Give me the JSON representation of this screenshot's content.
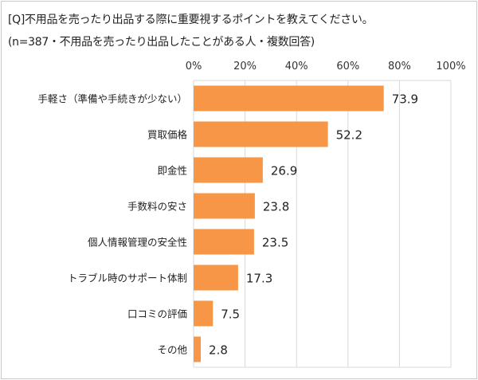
{
  "title": "[Q]不用品を売ったり出品する際に重要視するポイントを教えてください。",
  "subtitle": "(n=387・不用品を売ったり出品したことがある人・複数回答)",
  "chart_data": {
    "type": "bar",
    "orientation": "horizontal",
    "title": "[Q]不用品を売ったり出品する際に重要視するポイントを教えてください。",
    "subtitle": "(n=387・不用品を売ったり出品したことがある人・複数回答)",
    "categories": [
      "手軽さ（準備や手続きが少ない）",
      "買取価格",
      "即金性",
      "手数料の安さ",
      "個人情報管理の安全性",
      "トラブル時のサポート体制",
      "口コミの評価",
      "その他"
    ],
    "values": [
      73.9,
      52.2,
      26.9,
      23.8,
      23.5,
      17.3,
      7.5,
      2.8
    ],
    "data_labels": [
      "73.9",
      "52.2",
      "26.9",
      "23.8",
      "23.5",
      "17.3",
      "7.5",
      "2.8"
    ],
    "xlim": [
      0,
      100
    ],
    "x_ticks": [
      "0%",
      "20%",
      "40%",
      "60%",
      "80%",
      "100%"
    ],
    "x_tick_values": [
      0,
      20,
      40,
      60,
      80,
      100
    ],
    "xaxis_position": "top",
    "grid": true,
    "bar_color": "#F79646"
  }
}
